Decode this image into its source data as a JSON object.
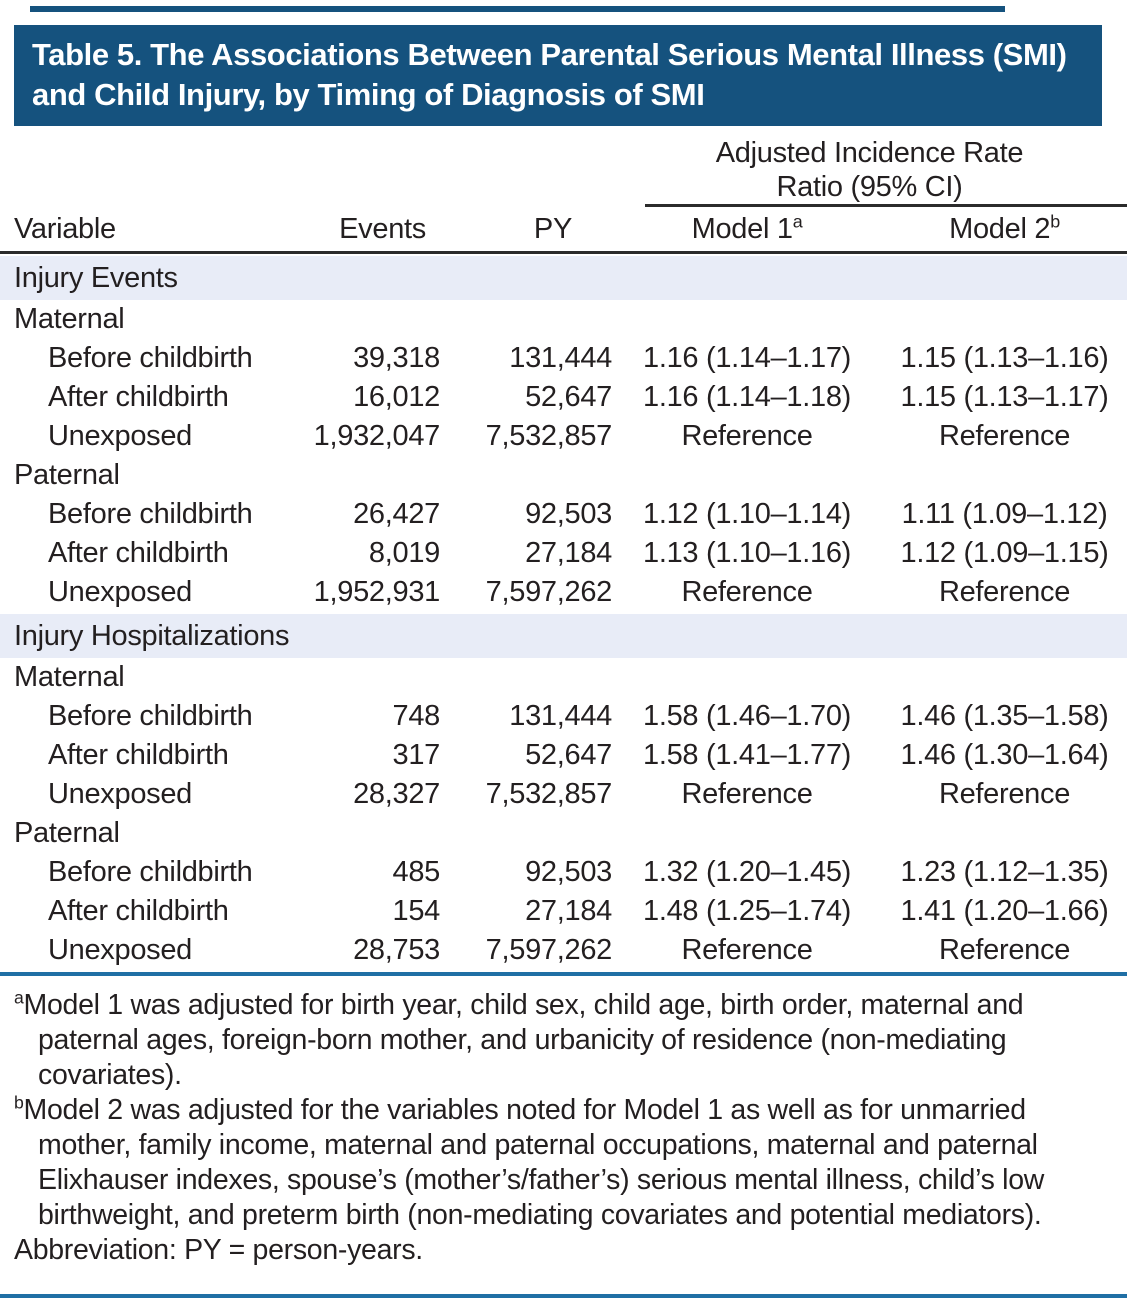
{
  "title": "Table 5. The Associations Between Parental Serious Mental Illness (SMI) and Child Injury, by Timing of Diagnosis of SMI",
  "colors": {
    "title_band": "#15527E",
    "section_band": "#E8ECF7",
    "blue_rule": "#1F6FA5",
    "text": "#231F20"
  },
  "header": {
    "spanner": "Adjusted Incidence Rate Ratio (95% CI)",
    "variable": "Variable",
    "events": "Events",
    "py": "PY",
    "model1": {
      "label": "Model 1",
      "sup": "a"
    },
    "model2": {
      "label": "Model 2",
      "sup": "b"
    }
  },
  "rows": [
    {
      "type": "section",
      "label": "Injury Events"
    },
    {
      "type": "group",
      "label": "Maternal"
    },
    {
      "type": "data",
      "variable": "Before childbirth",
      "events": "39,318",
      "py": "131,444",
      "model1": "1.16 (1.14–1.17)",
      "model2": "1.15 (1.13–1.16)"
    },
    {
      "type": "data",
      "variable": "After childbirth",
      "events": "16,012",
      "py": "52,647",
      "model1": "1.16 (1.14–1.18)",
      "model2": "1.15 (1.13–1.17)"
    },
    {
      "type": "data",
      "variable": "Unexposed",
      "events": "1,932,047",
      "py": "7,532,857",
      "model1": "Reference",
      "model2": "Reference"
    },
    {
      "type": "group",
      "label": "Paternal"
    },
    {
      "type": "data",
      "variable": "Before childbirth",
      "events": "26,427",
      "py": "92,503",
      "model1": "1.12 (1.10–1.14)",
      "model2": "1.11 (1.09–1.12)"
    },
    {
      "type": "data",
      "variable": "After childbirth",
      "events": "8,019",
      "py": "27,184",
      "model1": "1.13 (1.10–1.16)",
      "model2": "1.12 (1.09–1.15)"
    },
    {
      "type": "data",
      "variable": "Unexposed",
      "events": "1,952,931",
      "py": "7,597,262",
      "model1": "Reference",
      "model2": "Reference"
    },
    {
      "type": "section",
      "label": "Injury Hospitalizations"
    },
    {
      "type": "group",
      "label": "Maternal"
    },
    {
      "type": "data",
      "variable": "Before childbirth",
      "events": "748",
      "py": "131,444",
      "model1": "1.58 (1.46–1.70)",
      "model2": "1.46 (1.35–1.58)"
    },
    {
      "type": "data",
      "variable": "After childbirth",
      "events": "317",
      "py": "52,647",
      "model1": "1.58 (1.41–1.77)",
      "model2": "1.46 (1.30–1.64)"
    },
    {
      "type": "data",
      "variable": "Unexposed",
      "events": "28,327",
      "py": "7,532,857",
      "model1": "Reference",
      "model2": "Reference"
    },
    {
      "type": "group",
      "label": "Paternal"
    },
    {
      "type": "data",
      "variable": "Before childbirth",
      "events": "485",
      "py": "92,503",
      "model1": "1.32 (1.20–1.45)",
      "model2": "1.23 (1.12–1.35)"
    },
    {
      "type": "data",
      "variable": "After childbirth",
      "events": "154",
      "py": "27,184",
      "model1": "1.48 (1.25–1.74)",
      "model2": "1.41 (1.20–1.66)"
    },
    {
      "type": "data",
      "variable": "Unexposed",
      "events": "28,753",
      "py": "7,597,262",
      "model1": "Reference",
      "model2": "Reference"
    }
  ],
  "footnotes": [
    {
      "marker": "a",
      "text": "Model 1 was adjusted for birth year, child sex, child age, birth order, maternal and paternal ages, foreign-born mother, and urbanicity of residence (non-mediating covariates)."
    },
    {
      "marker": "b",
      "text": "Model 2 was adjusted for the variables noted for Model 1 as well as for unmarried mother, family income, maternal and paternal occupations, maternal and paternal Elixhauser indexes, spouse’s (mother’s/father’s) serious mental illness, child’s low birthweight, and preterm birth (non-mediating covariates and potential mediators)."
    },
    {
      "marker": "",
      "text": "Abbreviation: PY = person-years."
    }
  ]
}
